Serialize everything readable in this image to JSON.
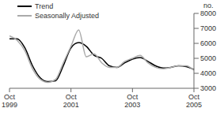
{
  "chart_data": {
    "type": "line",
    "y_label": "no.",
    "categories": [
      "Oct 1999",
      null,
      null,
      null,
      null,
      null,
      null,
      null,
      "Oct 2001",
      null,
      null,
      null,
      null,
      null,
      null,
      null,
      "Oct 2003",
      null,
      null,
      null,
      null,
      null,
      null,
      null,
      "Oct 2005"
    ],
    "series": [
      {
        "name": "Trend",
        "color": "#000000",
        "line_style": "solid",
        "values": [
          6300,
          6300,
          5700,
          4500,
          3700,
          3450,
          3500,
          4500,
          5700,
          6050,
          5800,
          5200,
          5000,
          4500,
          4400,
          4700,
          4950,
          5050,
          4800,
          4500,
          4350,
          4400,
          4500,
          4450,
          4250
        ]
      },
      {
        "name": "Seasonally Adjusted",
        "color": "#aaaaaa",
        "line_style": "solid",
        "values": [
          6500,
          6200,
          5500,
          4300,
          3600,
          3400,
          3600,
          4700,
          5800,
          6900,
          5100,
          5300,
          4700,
          4400,
          4400,
          4800,
          5000,
          5200,
          4700,
          4400,
          4300,
          4400,
          4500,
          4500,
          4200
        ]
      }
    ],
    "ylim": [
      3000,
      8000
    ],
    "yticks": [
      3000,
      4000,
      5000,
      6000,
      7000,
      8000
    ],
    "grid": false,
    "legend": "upper left"
  }
}
